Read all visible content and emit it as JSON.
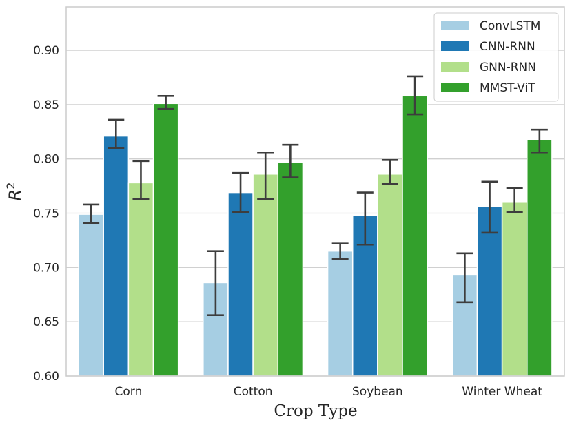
{
  "chart_data": {
    "type": "bar",
    "title": "",
    "xlabel": "Crop Type",
    "ylabel_base": "R",
    "ylabel_sup": "2",
    "categories": [
      "Corn",
      "Cotton",
      "Soybean",
      "Winter Wheat"
    ],
    "series": [
      {
        "name": "ConvLSTM",
        "color": "#a6cee3",
        "values": [
          0.749,
          0.686,
          0.715,
          0.693
        ],
        "err_low": [
          0.741,
          0.656,
          0.708,
          0.668
        ],
        "err_high": [
          0.758,
          0.715,
          0.722,
          0.713
        ]
      },
      {
        "name": "CNN-RNN",
        "color": "#1f78b4",
        "values": [
          0.821,
          0.769,
          0.748,
          0.756
        ],
        "err_low": [
          0.81,
          0.751,
          0.721,
          0.732
        ],
        "err_high": [
          0.836,
          0.787,
          0.769,
          0.779
        ]
      },
      {
        "name": "GNN-RNN",
        "color": "#b2df8a",
        "values": [
          0.778,
          0.786,
          0.786,
          0.76
        ],
        "err_low": [
          0.763,
          0.763,
          0.777,
          0.751
        ],
        "err_high": [
          0.798,
          0.806,
          0.799,
          0.773
        ]
      },
      {
        "name": "MMST-ViT",
        "color": "#33a02c",
        "values": [
          0.851,
          0.797,
          0.858,
          0.818
        ],
        "err_low": [
          0.846,
          0.783,
          0.841,
          0.806
        ],
        "err_high": [
          0.858,
          0.813,
          0.876,
          0.827
        ]
      }
    ],
    "ylim": [
      0.6,
      0.94
    ],
    "yticks": [
      0.6,
      0.65,
      0.7,
      0.75,
      0.8,
      0.85,
      0.9
    ],
    "ytick_labels": [
      "0.60",
      "0.65",
      "0.70",
      "0.75",
      "0.80",
      "0.85",
      "0.90"
    ],
    "grid": "horizontal",
    "legend_position": "top-right"
  }
}
